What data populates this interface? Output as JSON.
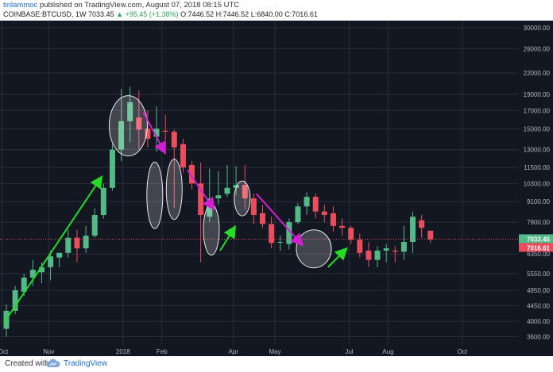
{
  "header": {
    "author": "tinlammoc",
    "published": "published on TradingView.com, August 07, 2018 08:15 UTC",
    "symbol": "COINBASE:BTCUSD, 1W",
    "last": "7033.45",
    "change": "▲ +95.45 (+1.38%)",
    "ohlc_o_label": "O:",
    "ohlc_o": "7446.52",
    "ohlc_h_label": "H:",
    "ohlc_h": "7446.52",
    "ohlc_l_label": "L:",
    "ohlc_l": "6840.00",
    "ohlc_c_label": "C:",
    "ohlc_c": "7016.61"
  },
  "footer": {
    "created_with": "Created with",
    "brand": "TradingView"
  },
  "colors": {
    "background": "#131722",
    "grid": "#2a2e39",
    "up": "#53b987",
    "down": "#eb4d5c",
    "up_arrow": "#22dd22",
    "down_arrow": "#d21fd2",
    "ellipse": "#e8e8e8",
    "last_tag": "#53b987",
    "close_tag": "#eb4d5c"
  },
  "chart_data": {
    "type": "candlestick",
    "scale": "log",
    "ylim": [
      3400,
      31500
    ],
    "y_ticks": [
      3600,
      4000,
      4450,
      4950,
      5550,
      6350,
      7900,
      9100,
      10300,
      11500,
      13000,
      15000,
      17000,
      19000,
      22000,
      26000,
      30000
    ],
    "y_tick_labels": [
      "3600.00",
      "4000.00",
      "4450.00",
      "4950.00",
      "5550.00",
      "6350.00",
      "7900.00",
      "9100.00",
      "10300.00",
      "11500.00",
      "13000.00",
      "15000.00",
      "17000.00",
      "19000.00",
      "22000.00",
      "26000.00",
      "30000.00"
    ],
    "x_labels": [
      {
        "week": -0.5,
        "label": "Oct"
      },
      {
        "week": 4.8,
        "label": "Nov"
      },
      {
        "week": 13.2,
        "label": "2018"
      },
      {
        "week": 17.6,
        "label": "Feb"
      },
      {
        "week": 25.7,
        "label": "Apr"
      },
      {
        "week": 30.4,
        "label": "May"
      },
      {
        "week": 38.8,
        "label": "Jul"
      },
      {
        "week": 43.2,
        "label": "Aug"
      },
      {
        "week": 51.6,
        "label": "Oct"
      }
    ],
    "last_price_tags": [
      "7033.45",
      "7016.61"
    ],
    "candles": [
      {
        "o": 3800,
        "h": 4500,
        "l": 3600,
        "c": 4300
      },
      {
        "o": 4300,
        "h": 5100,
        "l": 4200,
        "c": 4950
      },
      {
        "o": 4900,
        "h": 5550,
        "l": 4750,
        "c": 5400
      },
      {
        "o": 5400,
        "h": 6100,
        "l": 5100,
        "c": 5700
      },
      {
        "o": 5600,
        "h": 6000,
        "l": 5200,
        "c": 5800
      },
      {
        "o": 5800,
        "h": 6500,
        "l": 5300,
        "c": 6250
      },
      {
        "o": 6200,
        "h": 6400,
        "l": 5800,
        "c": 6400
      },
      {
        "o": 6400,
        "h": 7500,
        "l": 6200,
        "c": 7100
      },
      {
        "o": 7100,
        "h": 7500,
        "l": 6000,
        "c": 6600
      },
      {
        "o": 6600,
        "h": 7700,
        "l": 6400,
        "c": 7200
      },
      {
        "o": 7200,
        "h": 8700,
        "l": 7100,
        "c": 8300
      },
      {
        "o": 8300,
        "h": 10300,
        "l": 8100,
        "c": 10000
      },
      {
        "o": 10000,
        "h": 13500,
        "l": 9800,
        "c": 13000
      },
      {
        "o": 13000,
        "h": 19700,
        "l": 12000,
        "c": 15800
      },
      {
        "o": 15800,
        "h": 20000,
        "l": 13700,
        "c": 18000
      },
      {
        "o": 16200,
        "h": 19500,
        "l": 13000,
        "c": 14900
      },
      {
        "o": 15000,
        "h": 17000,
        "l": 13200,
        "c": 14000
      },
      {
        "o": 14200,
        "h": 17500,
        "l": 12800,
        "c": 15000
      },
      {
        "o": 14800,
        "h": 16500,
        "l": 13200,
        "c": 14700
      },
      {
        "o": 14700,
        "h": 14900,
        "l": 8700,
        "c": 13200
      },
      {
        "o": 13500,
        "h": 14000,
        "l": 11100,
        "c": 11500
      },
      {
        "o": 11700,
        "h": 12000,
        "l": 9900,
        "c": 10300
      },
      {
        "o": 10300,
        "h": 11900,
        "l": 6000,
        "c": 8300
      },
      {
        "o": 8200,
        "h": 11400,
        "l": 7900,
        "c": 9300
      },
      {
        "o": 9300,
        "h": 11200,
        "l": 8900,
        "c": 9500
      },
      {
        "o": 9600,
        "h": 11700,
        "l": 9400,
        "c": 10000
      },
      {
        "o": 10000,
        "h": 11600,
        "l": 9500,
        "c": 10200
      },
      {
        "o": 10200,
        "h": 11700,
        "l": 8600,
        "c": 9300
      },
      {
        "o": 9300,
        "h": 9600,
        "l": 7800,
        "c": 8300
      },
      {
        "o": 8400,
        "h": 8900,
        "l": 7600,
        "c": 7800
      },
      {
        "o": 7800,
        "h": 8200,
        "l": 6600,
        "c": 6850
      },
      {
        "o": 6900,
        "h": 7200,
        "l": 6500,
        "c": 6900
      },
      {
        "o": 6800,
        "h": 8100,
        "l": 6550,
        "c": 7900
      },
      {
        "o": 7900,
        "h": 9000,
        "l": 7800,
        "c": 8800
      },
      {
        "o": 8800,
        "h": 9700,
        "l": 8300,
        "c": 9400
      },
      {
        "o": 9400,
        "h": 9600,
        "l": 8100,
        "c": 8500
      },
      {
        "o": 8500,
        "h": 8900,
        "l": 7900,
        "c": 8300
      },
      {
        "o": 8400,
        "h": 8800,
        "l": 7400,
        "c": 7700
      },
      {
        "o": 7700,
        "h": 8100,
        "l": 7200,
        "c": 7600
      },
      {
        "o": 7600,
        "h": 7700,
        "l": 6800,
        "c": 7000
      },
      {
        "o": 7000,
        "h": 7300,
        "l": 6200,
        "c": 6400
      },
      {
        "o": 6500,
        "h": 6900,
        "l": 5800,
        "c": 6100
      },
      {
        "o": 6100,
        "h": 6700,
        "l": 5800,
        "c": 6500
      },
      {
        "o": 6500,
        "h": 6800,
        "l": 6000,
        "c": 6600
      },
      {
        "o": 6500,
        "h": 6700,
        "l": 6000,
        "c": 6450
      },
      {
        "o": 6450,
        "h": 7700,
        "l": 6100,
        "c": 6900
      },
      {
        "o": 6900,
        "h": 8500,
        "l": 6400,
        "c": 8200
      },
      {
        "o": 8000,
        "h": 8300,
        "l": 7100,
        "c": 7600
      },
      {
        "o": 7450,
        "h": 7450,
        "l": 6840,
        "c": 7020
      }
    ],
    "ellipses": [
      {
        "week": 13.8,
        "price": 15300,
        "rx": 24,
        "ry": 38
      },
      {
        "week": 16.8,
        "price": 9500,
        "rx": 10,
        "ry": 42
      },
      {
        "week": 19.0,
        "price": 9900,
        "rx": 10,
        "ry": 38
      },
      {
        "week": 23.2,
        "price": 7500,
        "rx": 10,
        "ry": 32
      },
      {
        "week": 26.7,
        "price": 9300,
        "rx": 10,
        "ry": 22
      },
      {
        "week": 34.8,
        "price": 6580,
        "rx": 22,
        "ry": 24
      }
    ],
    "arrows": [
      {
        "kind": "up",
        "from": [
          -0.3,
          3950
        ],
        "to": [
          10.7,
          10700
        ]
      },
      {
        "kind": "down",
        "from": [
          15.5,
          16800
        ],
        "to": [
          17.9,
          12800
        ]
      },
      {
        "kind": "down",
        "from": [
          20.5,
          11300
        ],
        "to": [
          23.4,
          8700
        ]
      },
      {
        "kind": "up",
        "from": [
          24.2,
          6500
        ],
        "to": [
          25.8,
          7600
        ]
      },
      {
        "kind": "down",
        "from": [
          28.3,
          9600
        ],
        "to": [
          33.4,
          6800
        ]
      },
      {
        "kind": "up",
        "from": [
          36.4,
          5800
        ],
        "to": [
          38.4,
          6550
        ]
      }
    ]
  }
}
